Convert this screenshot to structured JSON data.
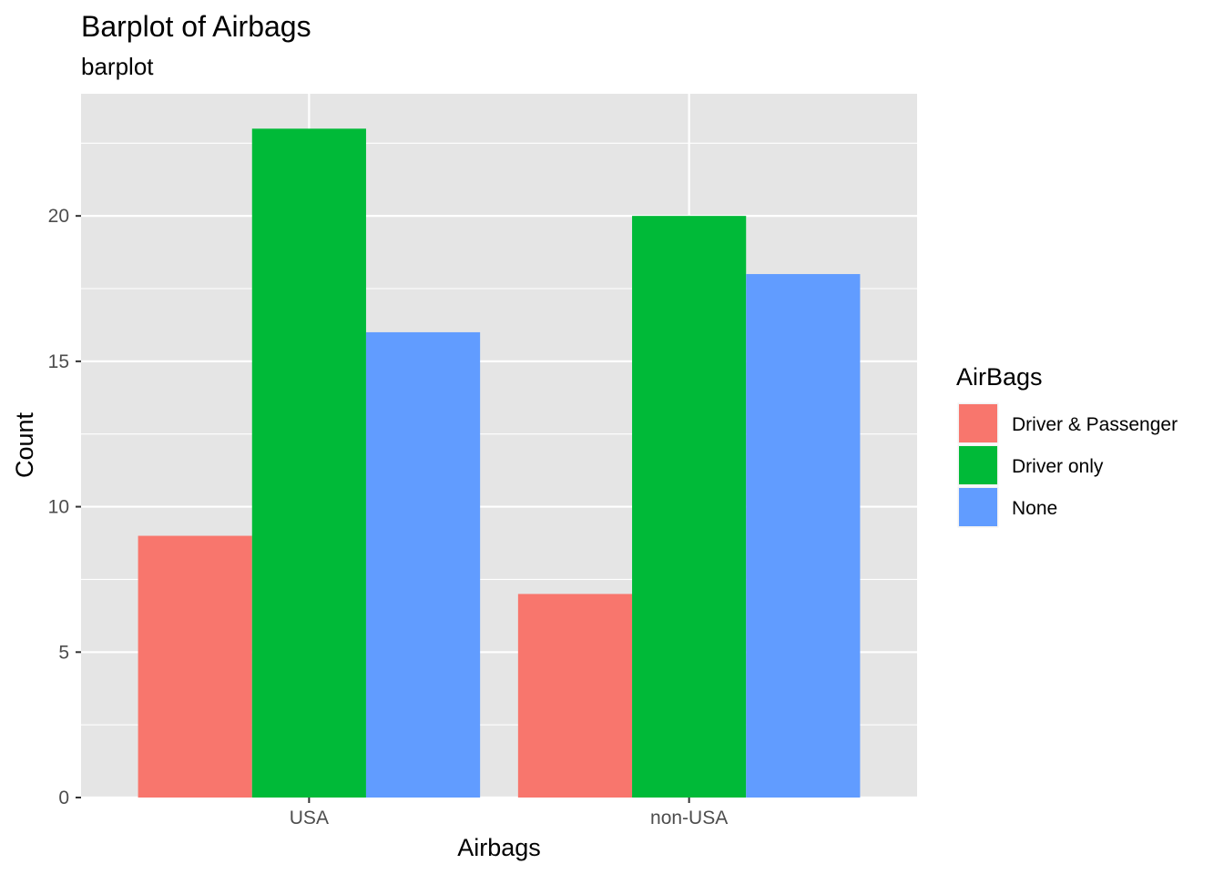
{
  "chart_data": {
    "type": "bar",
    "title": "Barplot of Airbags",
    "subtitle": "barplot",
    "xlabel": "Airbags",
    "ylabel": "Count",
    "categories": [
      "USA",
      "non-USA"
    ],
    "series": [
      {
        "name": "Driver & Passenger",
        "color": "#F8766D",
        "values": [
          9,
          7
        ]
      },
      {
        "name": "Driver only",
        "color": "#00BA38",
        "values": [
          23,
          20
        ]
      },
      {
        "name": "None",
        "color": "#619CFF",
        "values": [
          16,
          18
        ]
      }
    ],
    "ylim": [
      0,
      24.2
    ],
    "yticks": [
      0,
      5,
      10,
      15,
      20
    ],
    "grid": true,
    "legend": {
      "title": "AirBags",
      "placement": "right"
    },
    "colors": {
      "panel_background": "#E5E5E5",
      "grid": "#FFFFFF"
    }
  }
}
